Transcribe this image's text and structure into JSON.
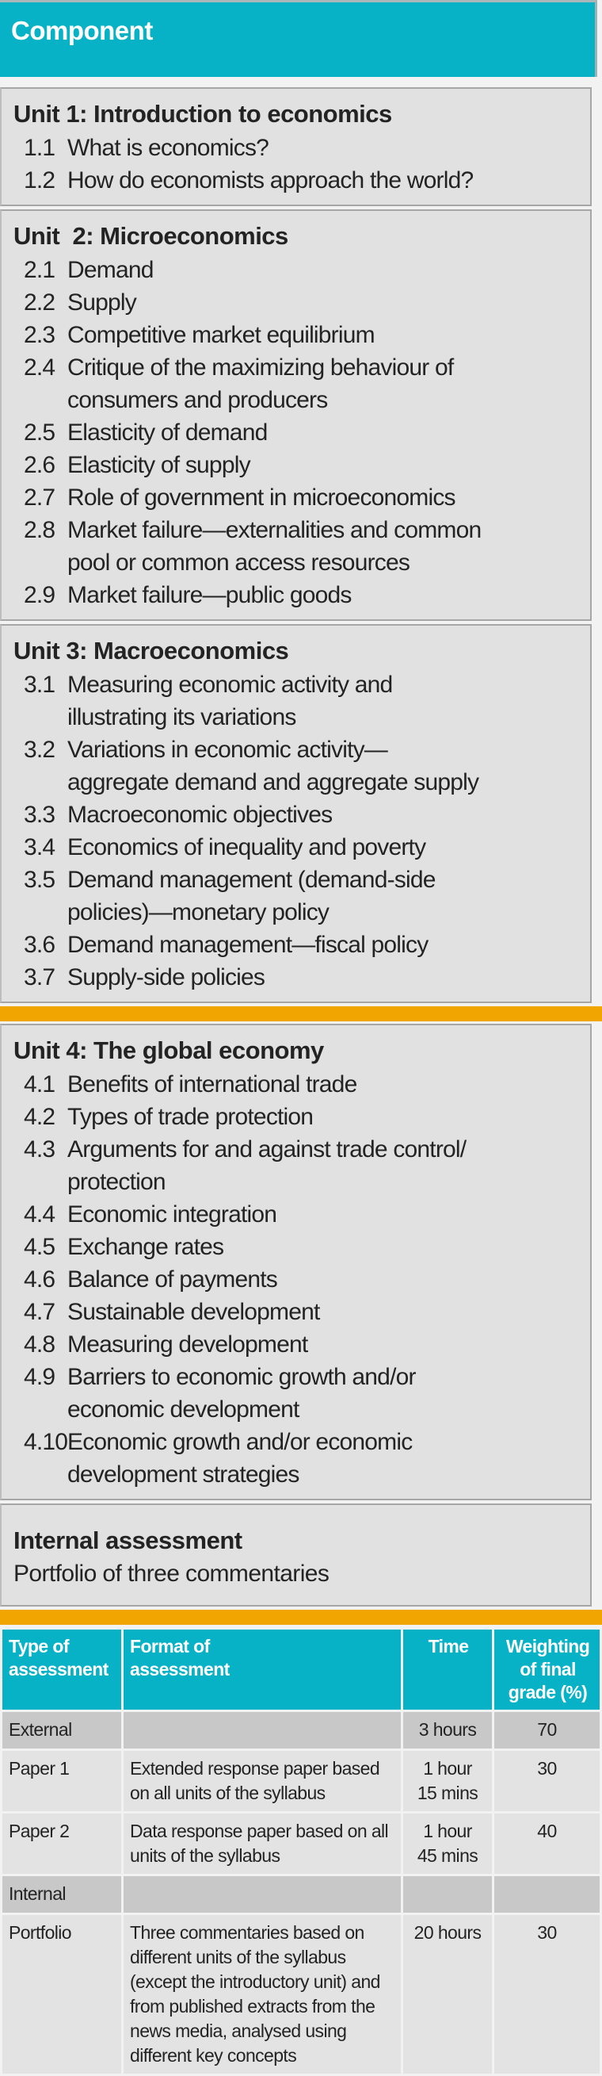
{
  "header": {
    "title": "Component"
  },
  "units": [
    {
      "title": "Unit 1: Introduction to economics",
      "items": [
        {
          "num": "1.1",
          "text": "What is economics?"
        },
        {
          "num": "1.2",
          "text": "How do economists approach the world?"
        }
      ]
    },
    {
      "title": "Unit  2: Microeconomics",
      "items": [
        {
          "num": "2.1",
          "text": "Demand"
        },
        {
          "num": "2.2",
          "text": "Supply"
        },
        {
          "num": "2.3",
          "text": "Competitive market equilibrium"
        },
        {
          "num": "2.4",
          "text": "Critique of the maximizing behaviour of\nconsumers and producers"
        },
        {
          "num": "2.5",
          "text": "Elasticity of demand"
        },
        {
          "num": "2.6",
          "text": "Elasticity of supply"
        },
        {
          "num": "2.7",
          "text": "Role of government in microeconomics"
        },
        {
          "num": "2.8",
          "text": "Market failure—externalities and common\npool or common access resources"
        },
        {
          "num": "2.9",
          "text": "Market failure—public goods"
        }
      ]
    },
    {
      "title": "Unit 3: Macroeconomics",
      "items": [
        {
          "num": "3.1",
          "text": "Measuring economic activity and\nillustrating its variations"
        },
        {
          "num": "3.2",
          "text": "Variations in economic activity—\naggregate demand and aggregate supply"
        },
        {
          "num": "3.3",
          "text": "Macroeconomic objectives"
        },
        {
          "num": "3.4",
          "text": "Economics of inequality and poverty"
        },
        {
          "num": "3.5",
          "text": "Demand management (demand-side\npolicies)—monetary policy"
        },
        {
          "num": "3.6",
          "text": "Demand management—fiscal policy"
        },
        {
          "num": "3.7",
          "text": "Supply-side policies"
        }
      ]
    },
    {
      "title": "Unit 4: The global economy",
      "items": [
        {
          "num": "4.1",
          "text": "Benefits of international trade"
        },
        {
          "num": "4.2",
          "text": "Types of trade protection"
        },
        {
          "num": "4.3",
          "text": "Arguments for and against trade control/\nprotection"
        },
        {
          "num": "4.4",
          "text": "Economic integration"
        },
        {
          "num": "4.5",
          "text": "Exchange rates"
        },
        {
          "num": "4.6",
          "text": "Balance of payments"
        },
        {
          "num": "4.7",
          "text": "Sustainable development"
        },
        {
          "num": "4.8",
          "text": "Measuring development"
        },
        {
          "num": "4.9",
          "text": "Barriers to economic growth and/or\neconomic development"
        },
        {
          "num": "4.10",
          "text": "Economic growth and/or economic\ndevelopment strategies"
        }
      ]
    }
  ],
  "internal_assessment": {
    "title": "Internal assessment",
    "subtitle": "Portfolio of three commentaries"
  },
  "assessment_table": {
    "columns": [
      {
        "key": "type",
        "label": "Type of\nassessment"
      },
      {
        "key": "format",
        "label": "Format of\nassessment"
      },
      {
        "key": "time",
        "label": "Time"
      },
      {
        "key": "weighting",
        "label": "Weighting\nof final\ngrade (%)"
      }
    ],
    "rows": [
      {
        "variant": "divider",
        "type": "External",
        "format": "",
        "time": "3 hours",
        "weighting": "70"
      },
      {
        "variant": "normal",
        "type": "Paper 1",
        "format": "Extended response paper based on all units of the syllabus",
        "time": "1 hour\n15 mins",
        "weighting": "30"
      },
      {
        "variant": "normal",
        "type": "Paper 2",
        "format": "Data response paper based on all units of the syllabus",
        "time": "1 hour\n45 mins",
        "weighting": "40"
      },
      {
        "variant": "divider",
        "type": "Internal",
        "format": "",
        "time": "",
        "weighting": ""
      },
      {
        "variant": "normal",
        "type": "Portfolio",
        "format": "Three commentaries based on different units of the syllabus (except the introductory unit) and from published extracts from the news media, analysed using different key concepts",
        "time": "20 hours",
        "weighting": "30"
      }
    ]
  },
  "colors": {
    "teal": "#08b2c6",
    "gold": "#f0a500",
    "block_bg": "#e1e1e1",
    "row_bg": "#e3e3e3",
    "divider_row_bg": "#c8c8c8",
    "page_bg": "#f2f2f2",
    "text": "#232323",
    "header_text": "#ffffff"
  }
}
